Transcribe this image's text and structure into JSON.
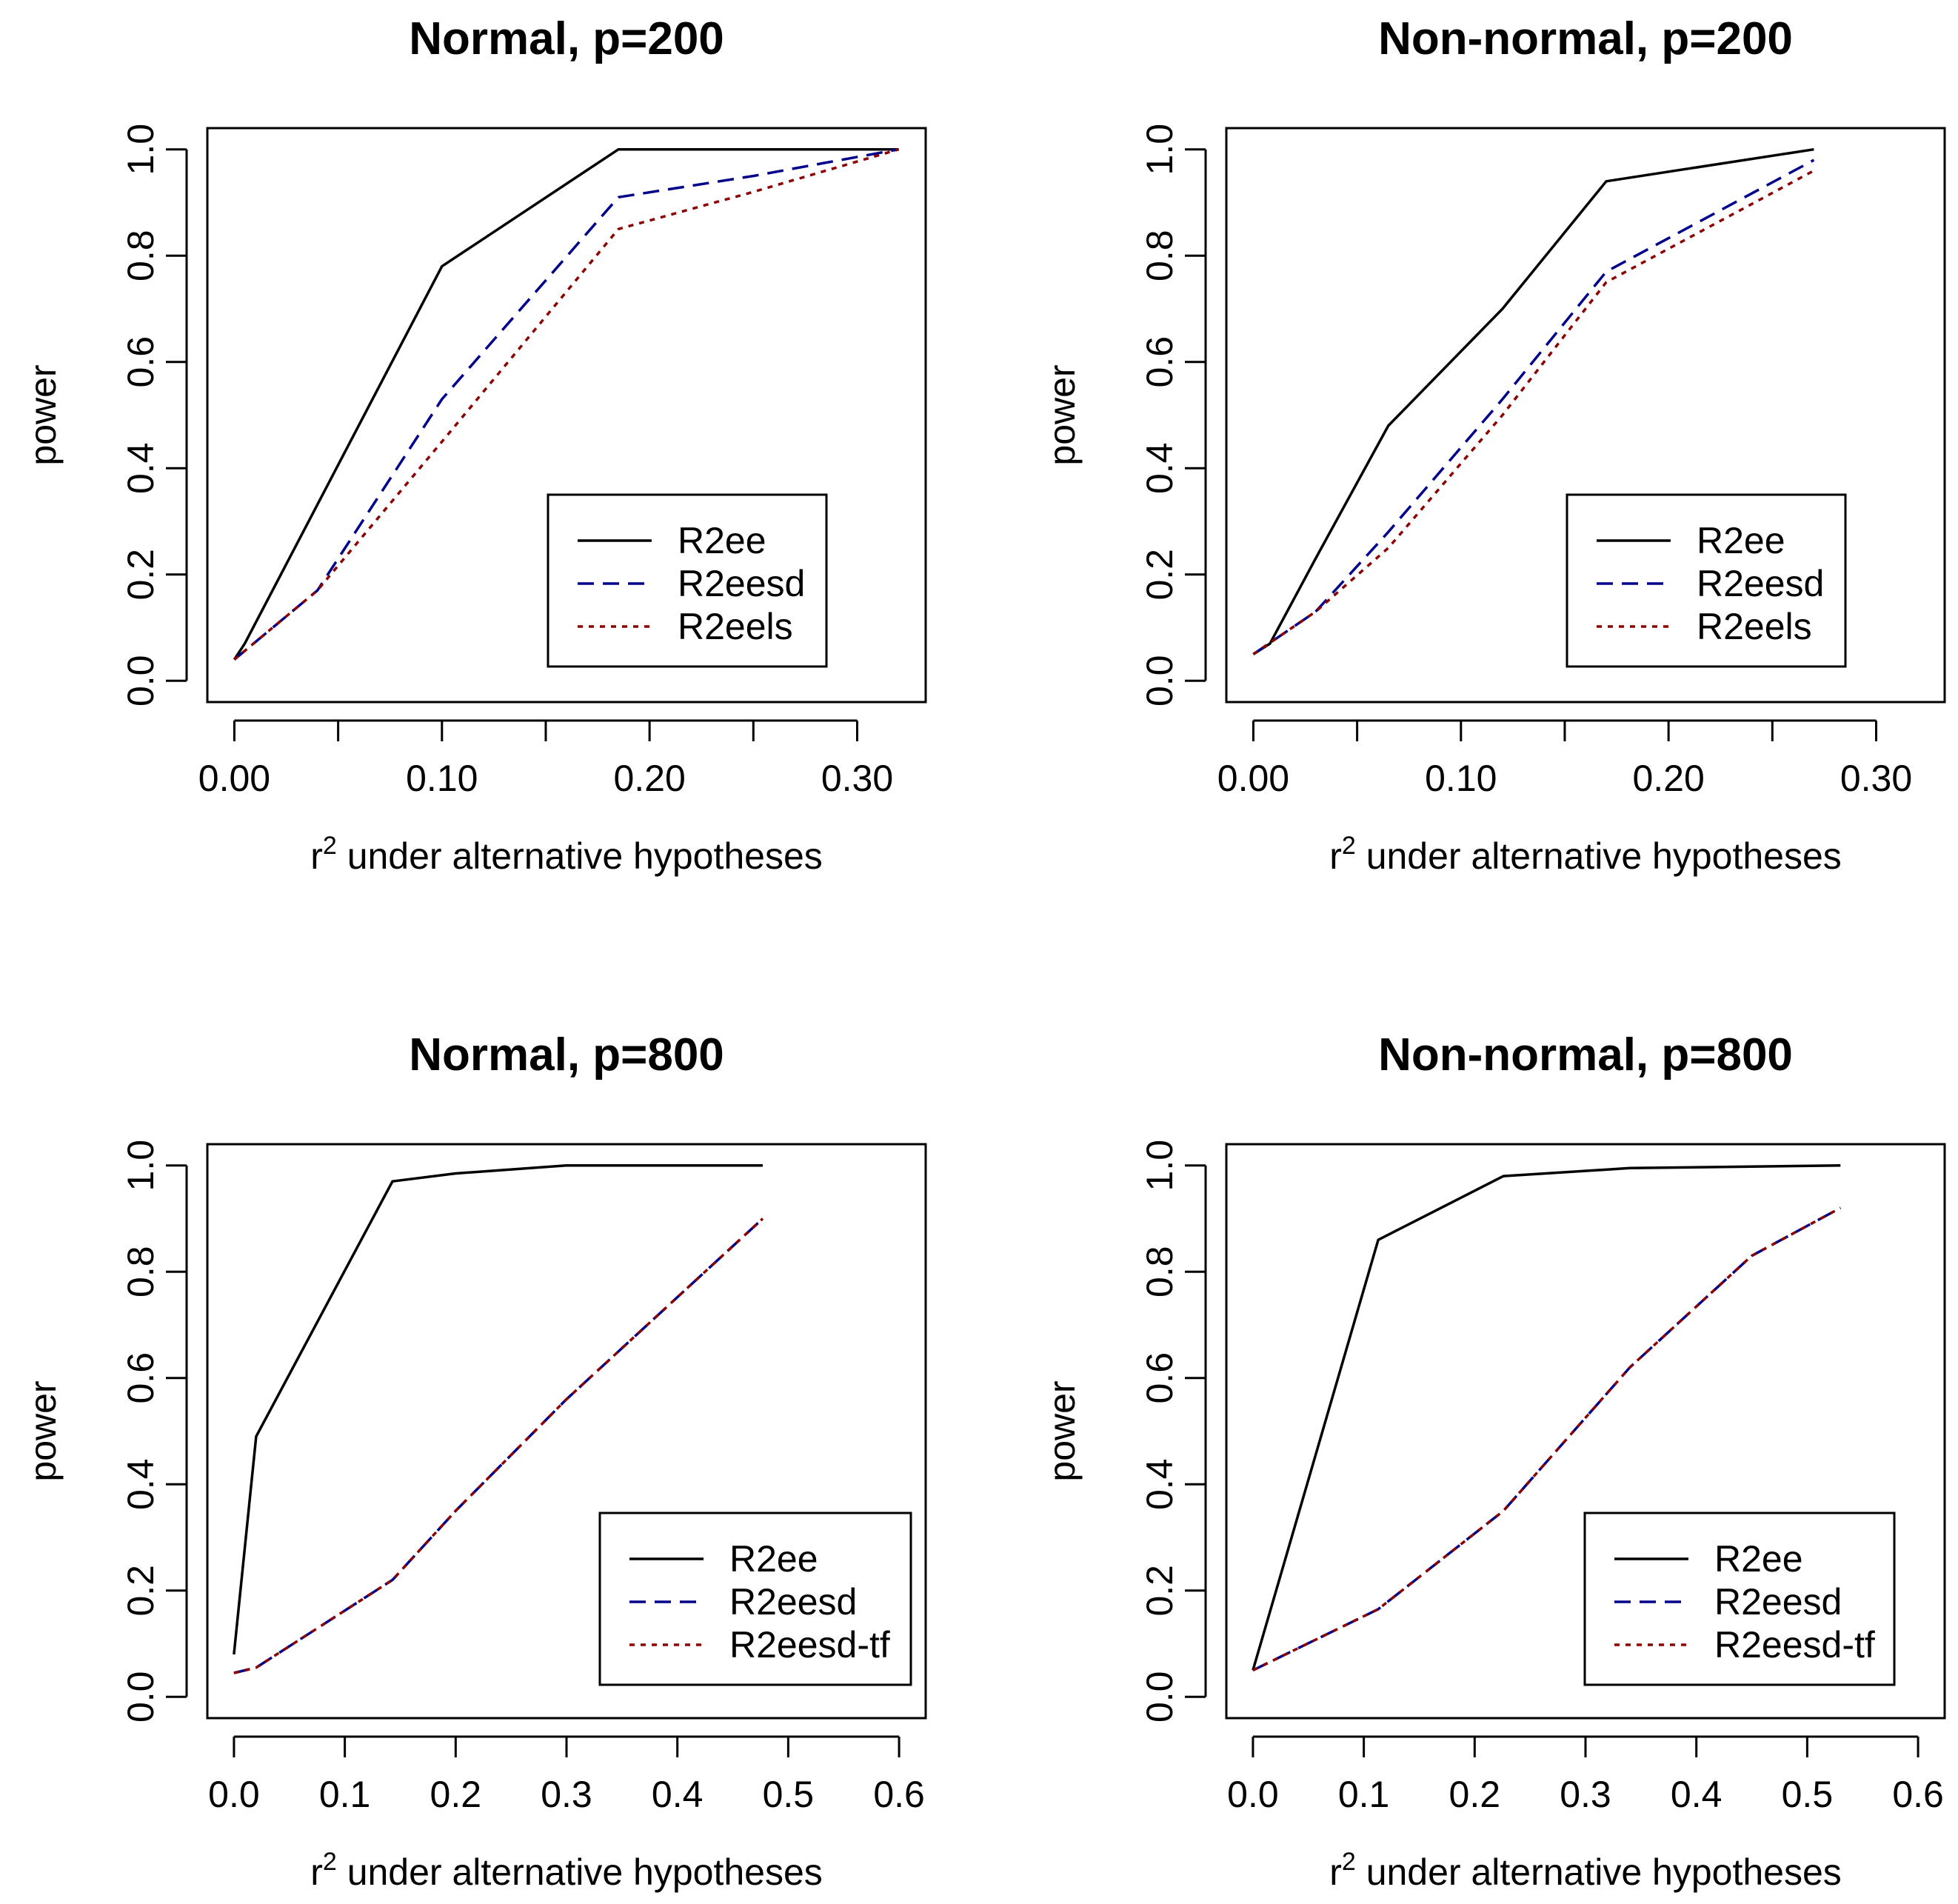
{
  "chart_data": [
    {
      "type": "line",
      "title": "Normal, p=200",
      "xlabel": "r",
      "xlabel_superscript": "2",
      "xlabel_rest": " under alternative hypotheses",
      "ylabel": "power",
      "xlim": [
        -0.013,
        0.333
      ],
      "ylim": [
        -0.04,
        1.04
      ],
      "xticks": [
        "0.00",
        "0.05",
        "0.10",
        "0.15",
        "0.20",
        "0.25",
        "0.30"
      ],
      "xtick_values": [
        0.0,
        0.05,
        0.1,
        0.15,
        0.2,
        0.25,
        0.3
      ],
      "xtick_label_values": [
        0.0,
        0.1,
        0.2,
        0.3
      ],
      "xtick_labels": [
        "0.00",
        "0.10",
        "0.20",
        "0.30"
      ],
      "yticks": [
        0.0,
        0.2,
        0.4,
        0.6,
        0.8,
        1.0
      ],
      "ytick_labels": [
        "0.0",
        "0.2",
        "0.4",
        "0.6",
        "0.8",
        "1.0"
      ],
      "legend_position": "bottom-right",
      "series": [
        {
          "name": "R2ee",
          "color": "#000000",
          "dash": "solid",
          "x": [
            0.0,
            0.005,
            0.1,
            0.185,
            0.32
          ],
          "y": [
            0.04,
            0.07,
            0.78,
            1.0,
            1.0
          ]
        },
        {
          "name": "R2eesd",
          "color": "#00008B",
          "dash": "dashed",
          "x": [
            0.0,
            0.04,
            0.1,
            0.185,
            0.25,
            0.32
          ],
          "y": [
            0.04,
            0.17,
            0.53,
            0.91,
            0.95,
            1.0
          ]
        },
        {
          "name": "R2eels",
          "color": "#8B0000",
          "dash": "dotted",
          "x": [
            0.0,
            0.04,
            0.1,
            0.185,
            0.25,
            0.32
          ],
          "y": [
            0.04,
            0.17,
            0.45,
            0.85,
            0.92,
            1.0
          ]
        }
      ]
    },
    {
      "type": "line",
      "title": "Non-normal, p=200",
      "xlabel": "r",
      "xlabel_superscript": "2",
      "xlabel_rest": " under alternative hypotheses",
      "ylabel": "power",
      "xlim": [
        -0.013,
        0.333
      ],
      "ylim": [
        -0.04,
        1.04
      ],
      "xticks": [
        "0.00",
        "0.05",
        "0.10",
        "0.15",
        "0.20",
        "0.25",
        "0.30"
      ],
      "xtick_values": [
        0.0,
        0.05,
        0.1,
        0.15,
        0.2,
        0.25,
        0.3
      ],
      "xtick_label_values": [
        0.0,
        0.1,
        0.2,
        0.3
      ],
      "xtick_labels": [
        "0.00",
        "0.10",
        "0.20",
        "0.30"
      ],
      "yticks": [
        0.0,
        0.2,
        0.4,
        0.6,
        0.8,
        1.0
      ],
      "ytick_labels": [
        "0.0",
        "0.2",
        "0.4",
        "0.6",
        "0.8",
        "1.0"
      ],
      "legend_position": "bottom-right",
      "series": [
        {
          "name": "R2ee",
          "color": "#000000",
          "dash": "solid",
          "x": [
            0.0,
            0.008,
            0.03,
            0.065,
            0.12,
            0.17,
            0.27
          ],
          "y": [
            0.05,
            0.07,
            0.23,
            0.48,
            0.7,
            0.94,
            1.0
          ]
        },
        {
          "name": "R2eesd",
          "color": "#00008B",
          "dash": "dashed",
          "x": [
            0.0,
            0.03,
            0.065,
            0.12,
            0.17,
            0.27
          ],
          "y": [
            0.05,
            0.13,
            0.28,
            0.53,
            0.77,
            0.98
          ]
        },
        {
          "name": "R2eels",
          "color": "#8B0000",
          "dash": "dotted",
          "x": [
            0.0,
            0.03,
            0.065,
            0.12,
            0.17,
            0.27
          ],
          "y": [
            0.05,
            0.13,
            0.25,
            0.5,
            0.75,
            0.96
          ]
        }
      ]
    },
    {
      "type": "line",
      "title": "Normal, p=800",
      "xlabel": "r",
      "xlabel_superscript": "2",
      "xlabel_rest": " under alternative hypotheses",
      "ylabel": "power",
      "xlim": [
        -0.024,
        0.624
      ],
      "ylim": [
        -0.04,
        1.04
      ],
      "xticks": [
        "0.0",
        "0.1",
        "0.2",
        "0.3",
        "0.4",
        "0.5",
        "0.6"
      ],
      "xtick_values": [
        0.0,
        0.1,
        0.2,
        0.3,
        0.4,
        0.5,
        0.6
      ],
      "xtick_label_values": [
        0.0,
        0.1,
        0.2,
        0.3,
        0.4,
        0.5,
        0.6
      ],
      "xtick_labels": [
        "0.0",
        "0.1",
        "0.2",
        "0.3",
        "0.4",
        "0.5",
        "0.6"
      ],
      "yticks": [
        0.0,
        0.2,
        0.4,
        0.6,
        0.8,
        1.0
      ],
      "ytick_labels": [
        "0.0",
        "0.2",
        "0.4",
        "0.6",
        "0.8",
        "1.0"
      ],
      "legend_position": "bottom-right",
      "series": [
        {
          "name": "R2ee",
          "color": "#000000",
          "dash": "solid",
          "x": [
            0.0,
            0.02,
            0.143,
            0.2,
            0.3,
            0.477
          ],
          "y": [
            0.08,
            0.49,
            0.97,
            0.985,
            1.0,
            1.0
          ]
        },
        {
          "name": "R2eesd",
          "color": "#00008B",
          "dash": "dashed",
          "x": [
            0.0,
            0.02,
            0.143,
            0.2,
            0.3,
            0.477
          ],
          "y": [
            0.045,
            0.055,
            0.22,
            0.35,
            0.56,
            0.9
          ]
        },
        {
          "name": "R2eesd-tf",
          "color": "#8B0000",
          "dash": "dotted",
          "x": [
            0.0,
            0.02,
            0.143,
            0.2,
            0.3,
            0.477
          ],
          "y": [
            0.045,
            0.055,
            0.22,
            0.35,
            0.56,
            0.9
          ]
        }
      ]
    },
    {
      "type": "line",
      "title": "Non-normal, p=800",
      "xlabel": "r",
      "xlabel_superscript": "2",
      "xlabel_rest": " under alternative hypotheses",
      "ylabel": "power",
      "xlim": [
        -0.024,
        0.624
      ],
      "ylim": [
        -0.04,
        1.04
      ],
      "xticks": [
        "0.0",
        "0.1",
        "0.2",
        "0.3",
        "0.4",
        "0.5",
        "0.6"
      ],
      "xtick_values": [
        0.0,
        0.1,
        0.2,
        0.3,
        0.4,
        0.5,
        0.6
      ],
      "xtick_label_values": [
        0.0,
        0.1,
        0.2,
        0.3,
        0.4,
        0.5,
        0.6
      ],
      "xtick_labels": [
        "0.0",
        "0.1",
        "0.2",
        "0.3",
        "0.4",
        "0.5",
        "0.6"
      ],
      "yticks": [
        0.0,
        0.2,
        0.4,
        0.6,
        0.8,
        1.0
      ],
      "ytick_labels": [
        "0.0",
        "0.2",
        "0.4",
        "0.6",
        "0.8",
        "1.0"
      ],
      "legend_position": "bottom-right",
      "series": [
        {
          "name": "R2ee",
          "color": "#000000",
          "dash": "solid",
          "x": [
            0.0,
            0.113,
            0.226,
            0.34,
            0.53
          ],
          "y": [
            0.05,
            0.86,
            0.98,
            0.995,
            1.0
          ]
        },
        {
          "name": "R2eesd",
          "color": "#00008B",
          "dash": "dashed",
          "x": [
            0.0,
            0.113,
            0.226,
            0.34,
            0.45,
            0.53
          ],
          "y": [
            0.05,
            0.165,
            0.35,
            0.62,
            0.83,
            0.92
          ]
        },
        {
          "name": "R2eesd-tf",
          "color": "#8B0000",
          "dash": "dotted",
          "x": [
            0.0,
            0.113,
            0.226,
            0.34,
            0.45,
            0.53
          ],
          "y": [
            0.05,
            0.165,
            0.35,
            0.62,
            0.83,
            0.92
          ]
        }
      ]
    }
  ]
}
